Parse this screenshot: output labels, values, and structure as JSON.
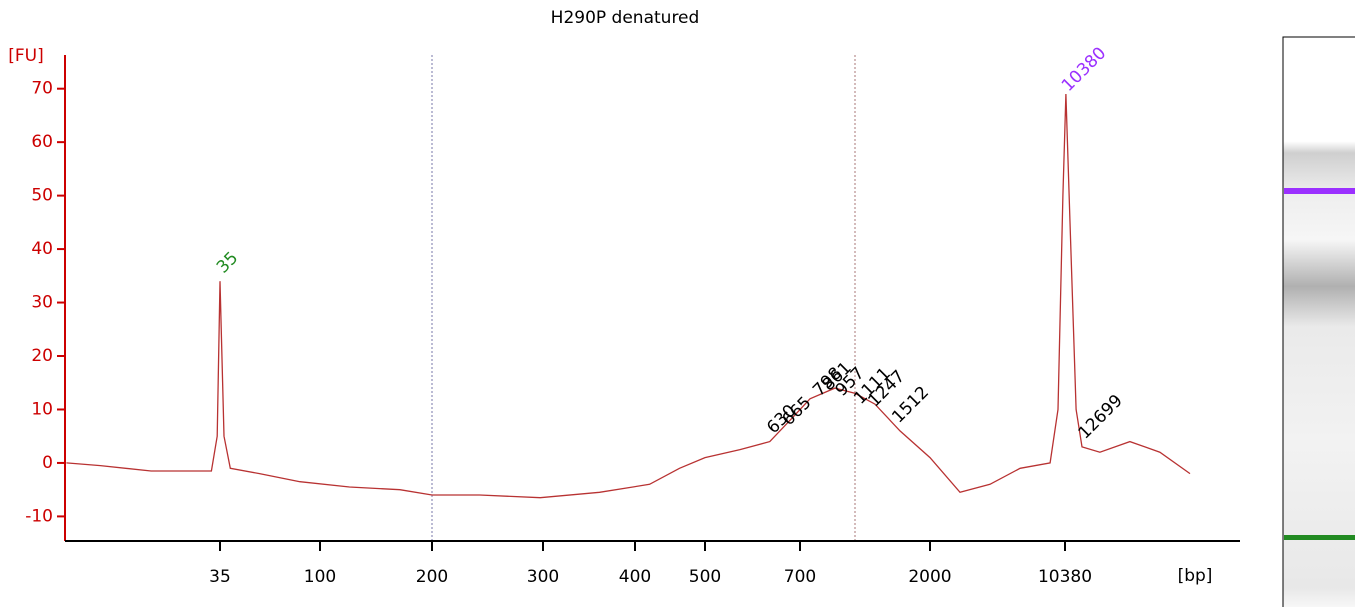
{
  "chart_data": {
    "type": "line",
    "title": "H290P denatured",
    "y_label": "[FU]",
    "x_label": "[bp]",
    "axis_color": "#cc0000",
    "ylim": [
      -14.6,
      76.3
    ],
    "yticks": [
      -10,
      0,
      10,
      20,
      30,
      40,
      50,
      60,
      70
    ],
    "xlim": [
      6.9,
      87600
    ],
    "xticks": [
      35,
      100,
      200,
      300,
      400,
      500,
      700,
      2000,
      10380
    ],
    "series": [
      {
        "color": "#b83232",
        "x": [
          7,
          10,
          17,
          32,
          34,
          35,
          36.5,
          39,
          53,
          81,
          120,
          164,
          200,
          238,
          297,
          358,
          419,
          461,
          500,
          566,
          629,
          676,
          759,
          928,
          1093,
          1282,
          1570,
          2000,
          2884,
          4160,
          6000,
          8650,
          9530,
          10120,
          10500,
          11030,
          11880,
          12770,
          15890,
          22900,
          33000,
          47600
        ],
        "values": [
          0,
          -0.5,
          -1.5,
          -1.5,
          5,
          34,
          5,
          -1,
          -2,
          -3.5,
          -4.5,
          -5,
          -6,
          -6,
          -6.5,
          -5.5,
          -4,
          -1,
          1,
          2.5,
          4,
          8,
          12,
          14,
          13,
          11,
          6,
          1,
          -5.5,
          -4,
          -1,
          0,
          10,
          50,
          69,
          45,
          10,
          3,
          2,
          4,
          2,
          -2
        ]
      }
    ],
    "annotations": [
      {
        "x": 35,
        "y": 36,
        "color": "#228b22"
      },
      {
        "x": 10380,
        "y": 70,
        "color": "#9b30ff"
      },
      {
        "x": 630,
        "y": 6,
        "color": "#000000"
      },
      {
        "x": 665,
        "y": 7.5,
        "color": "#000000"
      },
      {
        "x": 798,
        "y": 13,
        "color": "#000000"
      },
      {
        "x": 861,
        "y": 14,
        "color": "#000000"
      },
      {
        "x": 957,
        "y": 13,
        "color": "#000000"
      },
      {
        "x": 1111,
        "y": 11.5,
        "color": "#000000"
      },
      {
        "x": 1247,
        "y": 11,
        "color": "#000000"
      },
      {
        "x": 1512,
        "y": 8,
        "color": "#000000"
      },
      {
        "x": 12699,
        "y": 5,
        "color": "#000000"
      }
    ]
  }
}
